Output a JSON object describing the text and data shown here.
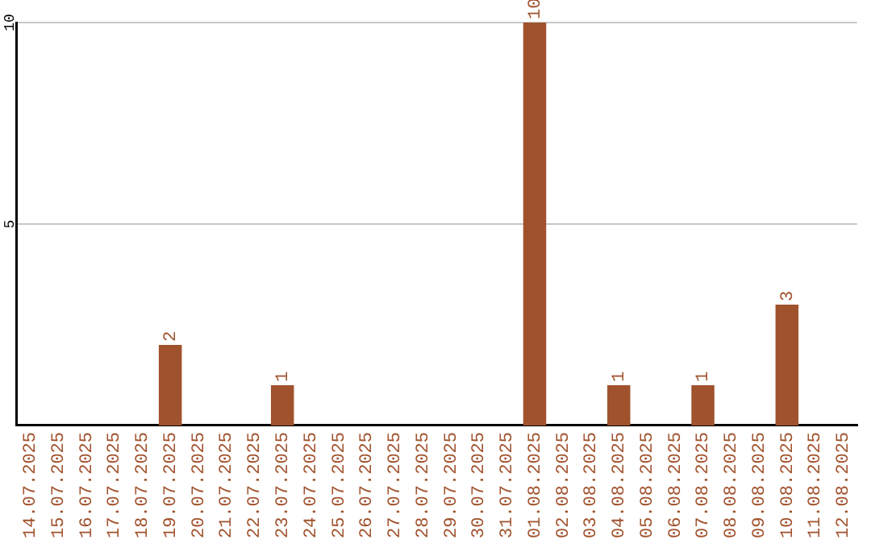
{
  "chart_data": {
    "type": "bar",
    "categories": [
      "14.07.2025",
      "15.07.2025",
      "16.07.2025",
      "17.07.2025",
      "18.07.2025",
      "19.07.2025",
      "20.07.2025",
      "21.07.2025",
      "22.07.2025",
      "23.07.2025",
      "24.07.2025",
      "25.07.2025",
      "26.07.2025",
      "27.07.2025",
      "28.07.2025",
      "29.07.2025",
      "30.07.2025",
      "31.07.2025",
      "01.08.2025",
      "02.08.2025",
      "03.08.2025",
      "04.08.2025",
      "05.08.2025",
      "06.08.2025",
      "07.08.2025",
      "08.08.2025",
      "09.08.2025",
      "10.08.2025",
      "11.08.2025",
      "12.08.2025"
    ],
    "values": [
      null,
      null,
      null,
      null,
      null,
      2,
      null,
      null,
      null,
      1,
      null,
      null,
      null,
      null,
      null,
      null,
      null,
      null,
      10,
      null,
      null,
      1,
      null,
      null,
      1,
      null,
      null,
      3,
      null,
      null
    ],
    "color": "#a0522d",
    "ylim": [
      0,
      10
    ],
    "yticks": [
      5,
      10
    ],
    "grid": "y",
    "data_labels": true,
    "legend": false
  }
}
